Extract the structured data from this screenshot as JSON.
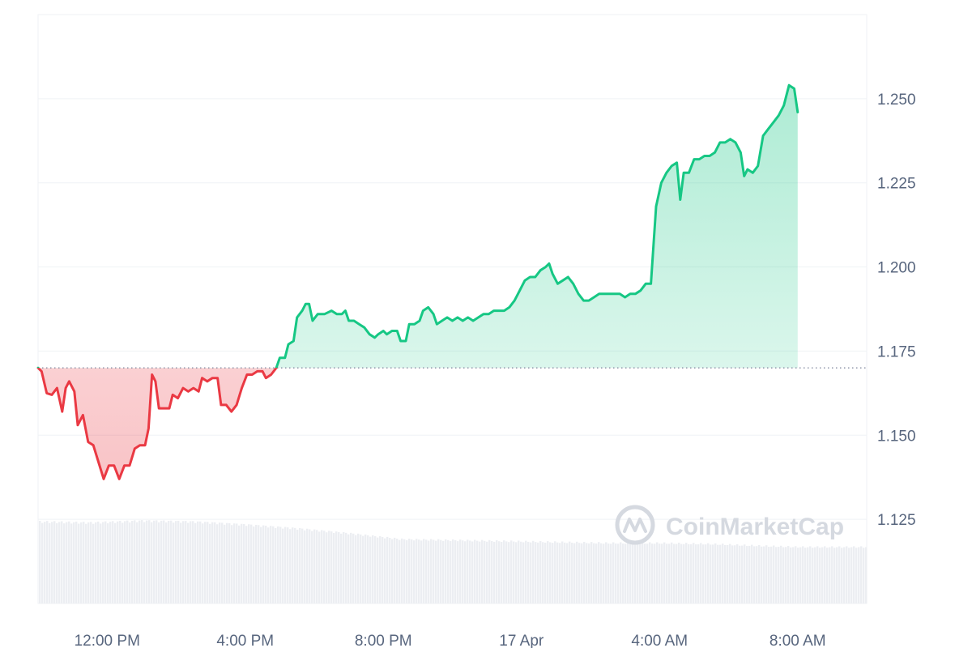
{
  "watermark": {
    "text": "CoinMarketCap",
    "icon": "coinmarketcap-logo-icon"
  },
  "colors": {
    "up_line": "#16c784",
    "down_line": "#ea3943",
    "up_fill": "#16c784",
    "down_fill": "#ea3943",
    "grid": "#eff2f5",
    "volume": "#eceef2",
    "baseline": "#858ca2",
    "axis_text": "#58667e"
  },
  "chart_data": {
    "type": "area",
    "title": "",
    "xlabel": "",
    "ylabel": "",
    "ylim": [
      1.1,
      1.275
    ],
    "grid": true,
    "baseline": 1.17,
    "y_ticks": [
      "1.125",
      "1.150",
      "1.175",
      "1.200",
      "1.225",
      "1.250"
    ],
    "x_ticks": [
      {
        "label": "12:00 PM",
        "hour": 2
      },
      {
        "label": "4:00 PM",
        "hour": 6
      },
      {
        "label": "8:00 PM",
        "hour": 10
      },
      {
        "label": "17 Apr",
        "hour": 14
      },
      {
        "label": "4:00 AM",
        "hour": 18
      },
      {
        "label": "8:00 AM",
        "hour": 22
      }
    ],
    "x_range_hours": [
      0,
      24
    ],
    "x_unit": "hours from 10:00 AM, 16 Apr",
    "price": [
      [
        0.0,
        1.17
      ],
      [
        0.1,
        1.169
      ],
      [
        0.25,
        1.1625
      ],
      [
        0.4,
        1.162
      ],
      [
        0.55,
        1.164
      ],
      [
        0.7,
        1.157
      ],
      [
        0.8,
        1.164
      ],
      [
        0.9,
        1.166
      ],
      [
        1.05,
        1.163
      ],
      [
        1.15,
        1.153
      ],
      [
        1.3,
        1.156
      ],
      [
        1.45,
        1.148
      ],
      [
        1.6,
        1.147
      ],
      [
        1.75,
        1.142
      ],
      [
        1.9,
        1.137
      ],
      [
        2.05,
        1.141
      ],
      [
        2.2,
        1.141
      ],
      [
        2.35,
        1.137
      ],
      [
        2.5,
        1.141
      ],
      [
        2.65,
        1.141
      ],
      [
        2.8,
        1.146
      ],
      [
        2.95,
        1.147
      ],
      [
        3.1,
        1.147
      ],
      [
        3.2,
        1.152
      ],
      [
        3.3,
        1.168
      ],
      [
        3.4,
        1.166
      ],
      [
        3.5,
        1.158
      ],
      [
        3.65,
        1.158
      ],
      [
        3.8,
        1.158
      ],
      [
        3.9,
        1.162
      ],
      [
        4.05,
        1.161
      ],
      [
        4.2,
        1.164
      ],
      [
        4.35,
        1.163
      ],
      [
        4.5,
        1.164
      ],
      [
        4.65,
        1.163
      ],
      [
        4.75,
        1.167
      ],
      [
        4.9,
        1.166
      ],
      [
        5.05,
        1.167
      ],
      [
        5.2,
        1.167
      ],
      [
        5.3,
        1.159
      ],
      [
        5.45,
        1.159
      ],
      [
        5.6,
        1.157
      ],
      [
        5.75,
        1.159
      ],
      [
        5.9,
        1.164
      ],
      [
        6.05,
        1.168
      ],
      [
        6.2,
        1.168
      ],
      [
        6.35,
        1.169
      ],
      [
        6.5,
        1.169
      ],
      [
        6.6,
        1.167
      ],
      [
        6.75,
        1.168
      ],
      [
        6.9,
        1.17
      ],
      [
        7.0,
        1.173
      ],
      [
        7.15,
        1.173
      ],
      [
        7.25,
        1.177
      ],
      [
        7.4,
        1.178
      ],
      [
        7.5,
        1.185
      ],
      [
        7.65,
        1.187
      ],
      [
        7.75,
        1.189
      ],
      [
        7.85,
        1.189
      ],
      [
        7.95,
        1.184
      ],
      [
        8.1,
        1.186
      ],
      [
        8.3,
        1.186
      ],
      [
        8.5,
        1.187
      ],
      [
        8.65,
        1.186
      ],
      [
        8.8,
        1.186
      ],
      [
        8.9,
        1.187
      ],
      [
        9.0,
        1.184
      ],
      [
        9.15,
        1.184
      ],
      [
        9.3,
        1.183
      ],
      [
        9.45,
        1.182
      ],
      [
        9.6,
        1.18
      ],
      [
        9.75,
        1.179
      ],
      [
        9.85,
        1.18
      ],
      [
        10.0,
        1.181
      ],
      [
        10.1,
        1.18
      ],
      [
        10.25,
        1.181
      ],
      [
        10.4,
        1.181
      ],
      [
        10.5,
        1.178
      ],
      [
        10.65,
        1.178
      ],
      [
        10.75,
        1.183
      ],
      [
        10.9,
        1.183
      ],
      [
        11.05,
        1.184
      ],
      [
        11.15,
        1.187
      ],
      [
        11.3,
        1.188
      ],
      [
        11.45,
        1.186
      ],
      [
        11.55,
        1.183
      ],
      [
        11.7,
        1.184
      ],
      [
        11.85,
        1.185
      ],
      [
        12.0,
        1.184
      ],
      [
        12.15,
        1.185
      ],
      [
        12.3,
        1.184
      ],
      [
        12.45,
        1.185
      ],
      [
        12.6,
        1.184
      ],
      [
        12.75,
        1.185
      ],
      [
        12.9,
        1.186
      ],
      [
        13.05,
        1.186
      ],
      [
        13.2,
        1.187
      ],
      [
        13.35,
        1.187
      ],
      [
        13.5,
        1.187
      ],
      [
        13.65,
        1.188
      ],
      [
        13.8,
        1.19
      ],
      [
        13.95,
        1.193
      ],
      [
        14.1,
        1.196
      ],
      [
        14.25,
        1.197
      ],
      [
        14.4,
        1.197
      ],
      [
        14.55,
        1.199
      ],
      [
        14.7,
        1.2
      ],
      [
        14.8,
        1.201
      ],
      [
        14.9,
        1.198
      ],
      [
        15.05,
        1.195
      ],
      [
        15.2,
        1.196
      ],
      [
        15.35,
        1.197
      ],
      [
        15.5,
        1.195
      ],
      [
        15.65,
        1.192
      ],
      [
        15.8,
        1.19
      ],
      [
        15.95,
        1.19
      ],
      [
        16.1,
        1.191
      ],
      [
        16.25,
        1.192
      ],
      [
        16.4,
        1.192
      ],
      [
        16.55,
        1.192
      ],
      [
        16.7,
        1.192
      ],
      [
        16.85,
        1.192
      ],
      [
        17.0,
        1.191
      ],
      [
        17.15,
        1.192
      ],
      [
        17.3,
        1.192
      ],
      [
        17.45,
        1.193
      ],
      [
        17.6,
        1.195
      ],
      [
        17.75,
        1.195
      ],
      [
        17.9,
        1.218
      ],
      [
        18.05,
        1.225
      ],
      [
        18.2,
        1.228
      ],
      [
        18.35,
        1.23
      ],
      [
        18.5,
        1.231
      ],
      [
        18.6,
        1.22
      ],
      [
        18.7,
        1.228
      ],
      [
        18.85,
        1.228
      ],
      [
        19.0,
        1.232
      ],
      [
        19.15,
        1.232
      ],
      [
        19.3,
        1.233
      ],
      [
        19.45,
        1.233
      ],
      [
        19.6,
        1.234
      ],
      [
        19.75,
        1.237
      ],
      [
        19.9,
        1.237
      ],
      [
        20.05,
        1.238
      ],
      [
        20.2,
        1.237
      ],
      [
        20.35,
        1.234
      ],
      [
        20.45,
        1.227
      ],
      [
        20.55,
        1.229
      ],
      [
        20.7,
        1.228
      ],
      [
        20.85,
        1.23
      ],
      [
        21.0,
        1.239
      ],
      [
        21.15,
        1.241
      ],
      [
        21.3,
        1.243
      ],
      [
        21.45,
        1.245
      ],
      [
        21.6,
        1.248
      ],
      [
        21.75,
        1.254
      ],
      [
        21.9,
        1.253
      ],
      [
        22.0,
        1.246
      ]
    ],
    "volume": [
      [
        0.0,
        0.84
      ],
      [
        1.5,
        0.83
      ],
      [
        3.0,
        0.85
      ],
      [
        4.5,
        0.84
      ],
      [
        6.0,
        0.81
      ],
      [
        7.5,
        0.77
      ],
      [
        9.0,
        0.72
      ],
      [
        10.5,
        0.66
      ],
      [
        12.0,
        0.65
      ],
      [
        13.5,
        0.64
      ],
      [
        15.0,
        0.63
      ],
      [
        16.5,
        0.62
      ],
      [
        18.0,
        0.62
      ],
      [
        19.5,
        0.61
      ],
      [
        21.0,
        0.59
      ],
      [
        22.0,
        0.58
      ]
    ]
  }
}
